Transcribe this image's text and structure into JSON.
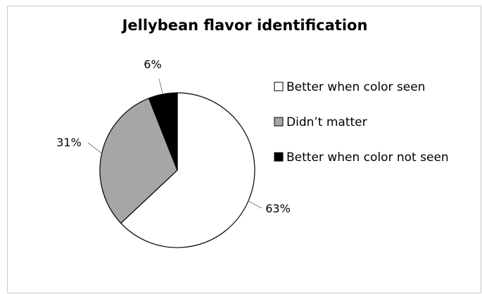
{
  "chart_data": {
    "type": "pie",
    "title": "Jellybean flavor identification",
    "categories": [
      "Better when color seen",
      "Didn’t matter",
      "Better when color not seen"
    ],
    "values": [
      63,
      31,
      6
    ],
    "data_labels": [
      "63%",
      "31%",
      "6%"
    ],
    "colors": [
      "#ffffff",
      "#a6a6a6",
      "#000000"
    ],
    "legend_position": "right"
  }
}
